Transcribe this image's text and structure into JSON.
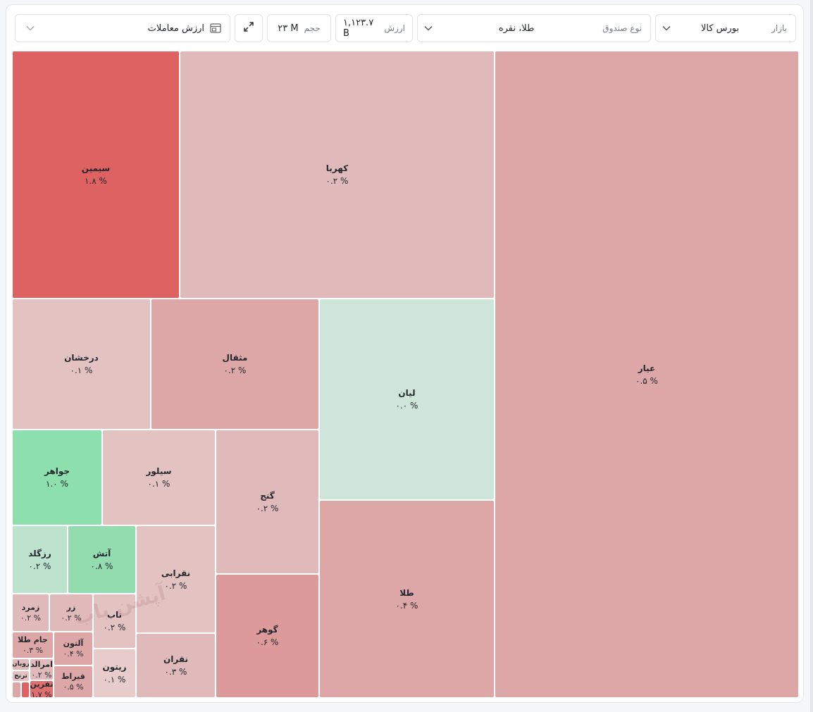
{
  "filters": {
    "market": {
      "label": "بازار",
      "value": "بورس کالا"
    },
    "fund_type": {
      "label": "نوع صندوق",
      "value": "طلا، نقره"
    },
    "value_stat": {
      "label": "ارزش",
      "value": "۱,۱۲۳.۷ B"
    },
    "volume_stat": {
      "label": "حجم",
      "value": "۲۳ M"
    },
    "metric": {
      "value": "ارزش معاملات"
    }
  },
  "icons": {
    "chevron": "chevron-down-icon",
    "expand": "expand-icon",
    "layout": "layout-icon"
  },
  "watermark": "آپشن یاب",
  "colors": {
    "strong_red": "#de6262",
    "red": "#dc9a9a",
    "red_light": "#dda7a7",
    "red_pale": "#e0baba",
    "green_light": "#d0e5d9",
    "green": "#8ddfae",
    "green_mid": "#93dcaf",
    "green_pale": "#bde2ce"
  },
  "tiles": [
    {
      "name": "عیار",
      "pct": "۰.۵ %"
    },
    {
      "name": "کهربا",
      "pct": "۰.۲ %"
    },
    {
      "name": "سیمین",
      "pct": "۱.۸ %"
    },
    {
      "name": "لیان",
      "pct": "۰.۰ %"
    },
    {
      "name": "طلا",
      "pct": "۰.۴ %"
    },
    {
      "name": "مثقال",
      "pct": "۰.۲ %"
    },
    {
      "name": "درخشان",
      "pct": "۰.۱ %"
    },
    {
      "name": "گنج",
      "pct": "۰.۲ %"
    },
    {
      "name": "گوهر",
      "pct": "۰.۶ %"
    },
    {
      "name": "سیلور",
      "pct": "۰.۱ %"
    },
    {
      "name": "جواهر",
      "pct": "۱.۰ %"
    },
    {
      "name": "نقرابی",
      "pct": "۰.۲ %"
    },
    {
      "name": "نقران",
      "pct": "۰.۳ %"
    },
    {
      "name": "آتش",
      "pct": "۰.۸ %"
    },
    {
      "name": "رزگلد",
      "pct": "۰.۲ %"
    },
    {
      "name": "ناب",
      "pct": "۰.۲ %"
    },
    {
      "name": "ریتون",
      "pct": "۰.۱ %"
    },
    {
      "name": "زر",
      "pct": "۰.۲ %"
    },
    {
      "name": "زمرد",
      "pct": "۰.۲ %"
    },
    {
      "name": "آلتون",
      "pct": "۰.۴ %"
    },
    {
      "name": "قیراط",
      "pct": "۰.۵ %"
    },
    {
      "name": "جام طلا",
      "pct": "۰.۳ %"
    },
    {
      "name": "امرالد",
      "pct": "۰.۲ %"
    },
    {
      "name": "نفرین",
      "pct": "۱.۷ %"
    },
    {
      "name": "روبان",
      "pct": ""
    },
    {
      "name": "ترنج",
      "pct": ""
    }
  ]
}
